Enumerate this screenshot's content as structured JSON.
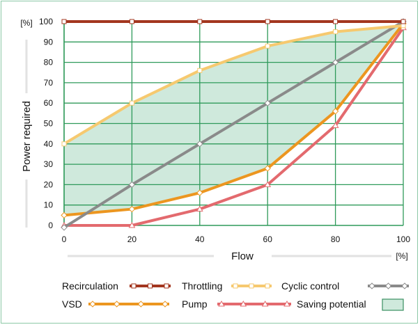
{
  "chart_data": {
    "type": "line",
    "xlabel": "Flow",
    "ylabel": "Power required",
    "x_unit": "[%]",
    "y_unit": "[%]",
    "xlim": [
      0,
      100
    ],
    "ylim": [
      0,
      100
    ],
    "x_ticks": [
      0,
      20,
      40,
      60,
      80,
      100
    ],
    "y_ticks": [
      0,
      10,
      20,
      30,
      40,
      50,
      60,
      70,
      80,
      90,
      100
    ],
    "grid": true,
    "legend_position": "bottom",
    "series": [
      {
        "name": "Recirculation",
        "color": "#a3361f",
        "marker": "square",
        "x": [
          0,
          20,
          40,
          60,
          80,
          100
        ],
        "y": [
          100,
          100,
          100,
          100,
          100,
          100
        ]
      },
      {
        "name": "Throttling",
        "color": "#f6c96f",
        "marker": "square",
        "x": [
          0,
          20,
          40,
          60,
          80,
          100
        ],
        "y": [
          40,
          60,
          76,
          88,
          95,
          98
        ]
      },
      {
        "name": "Cyclic control",
        "color": "#8a8a8a",
        "marker": "diamond",
        "x": [
          0,
          20,
          40,
          60,
          80,
          100
        ],
        "y": [
          -1,
          20,
          40,
          60,
          80,
          100
        ]
      },
      {
        "name": "VSD",
        "color": "#ec9620",
        "marker": "diamond",
        "x": [
          0,
          20,
          40,
          60,
          80,
          100
        ],
        "y": [
          5,
          8,
          16,
          28,
          56,
          99
        ]
      },
      {
        "name": "Pump",
        "color": "#e36a6e",
        "marker": "triangle",
        "x": [
          0,
          20,
          40,
          60,
          80,
          100
        ],
        "y": [
          0,
          0,
          8,
          20,
          49,
          97
        ]
      }
    ],
    "saving_potential": {
      "name": "Saving potential",
      "color": "#cfe9dc",
      "upper_series": "Throttling",
      "lower_series": "VSD"
    }
  }
}
